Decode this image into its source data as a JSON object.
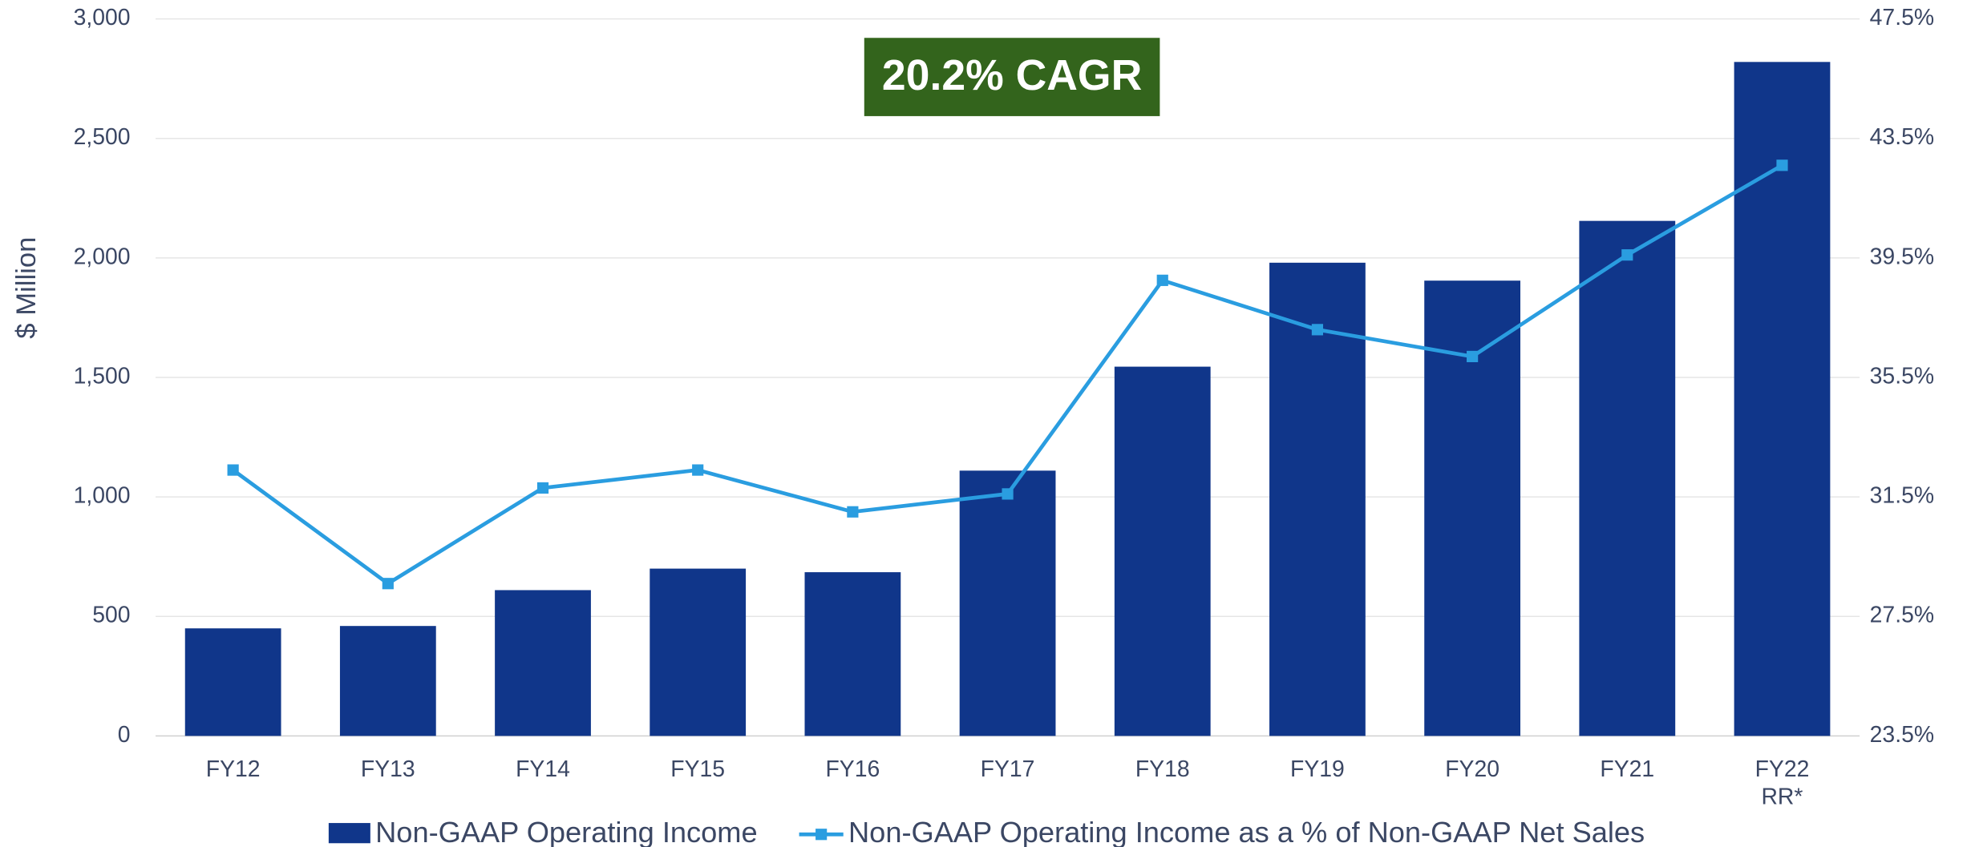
{
  "chart_data": {
    "type": "bar_line",
    "annotation": "20.2% CAGR",
    "y_label": "$ Million",
    "categories": [
      "FY12",
      "FY13",
      "FY14",
      "FY15",
      "FY16",
      "FY17",
      "FY18",
      "FY19",
      "FY20",
      "FY21",
      "FY22 RR*"
    ],
    "series": [
      {
        "name": "Non-GAAP Operating Income",
        "type": "bar",
        "color": "#10368a",
        "axis": "y",
        "values": [
          450,
          460,
          610,
          700,
          685,
          1110,
          1545,
          1980,
          1905,
          2155,
          2820
        ]
      },
      {
        "name": "Non-GAAP Operating Income as a % of Non-GAAP Net Sales",
        "type": "line",
        "color": "#2a9de0",
        "axis": "y2",
        "values": [
          32.4,
          28.6,
          31.8,
          32.4,
          31.0,
          31.6,
          38.75,
          37.1,
          36.2,
          39.6,
          42.6
        ]
      }
    ],
    "ylim": [
      0,
      3000
    ],
    "yticks": [
      0,
      500,
      {
        "value": 1000,
        "label": "1,000"
      },
      {
        "value": 1500,
        "label": "1,500"
      },
      {
        "value": 2000,
        "label": "2,000"
      },
      {
        "value": 2500,
        "label": "2,500"
      },
      {
        "value": 3000,
        "label": "3,000"
      }
    ],
    "y2lim": [
      23.5,
      47.5
    ],
    "y2ticks": [
      {
        "value": 23.5,
        "label": "23.5%"
      },
      {
        "value": 27.5,
        "label": "27.5%"
      },
      {
        "value": 31.5,
        "label": "31.5%"
      },
      {
        "value": 35.5,
        "label": "35.5%"
      },
      {
        "value": 39.5,
        "label": "39.5%"
      },
      {
        "value": 43.5,
        "label": "43.5%"
      },
      {
        "value": 47.5,
        "label": "47.5%"
      }
    ],
    "grid": true,
    "legend": "bottom"
  }
}
